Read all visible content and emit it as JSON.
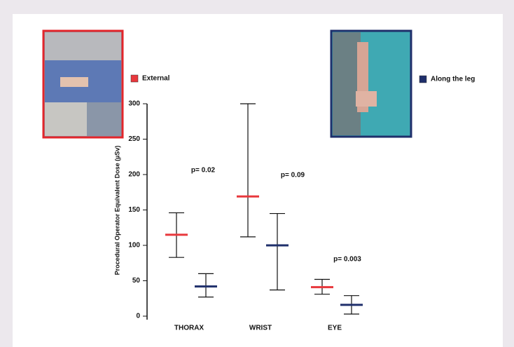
{
  "chart_data": {
    "type": "errorbar",
    "y_label": "Procedural Operator Equivalent Dose (µSv)",
    "categories": [
      "THORAX",
      "WRIST",
      "EYE"
    ],
    "series": [
      {
        "name": "External",
        "color": "#e8383d",
        "values": [
          115,
          169,
          41
        ],
        "low": [
          83,
          112,
          31
        ],
        "high": [
          146,
          300,
          52
        ]
      },
      {
        "name": "Along the leg",
        "color": "#1f2f6b",
        "values": [
          42,
          100,
          16
        ],
        "low": [
          27,
          37,
          3
        ],
        "high": [
          60,
          145,
          29
        ]
      }
    ],
    "annotations": [
      "p= 0.02",
      "p= 0.09",
      "p= 0.003"
    ],
    "ylim": [
      0,
      300
    ],
    "yticks": [
      0,
      50,
      100,
      150,
      200,
      250,
      300
    ]
  }
}
